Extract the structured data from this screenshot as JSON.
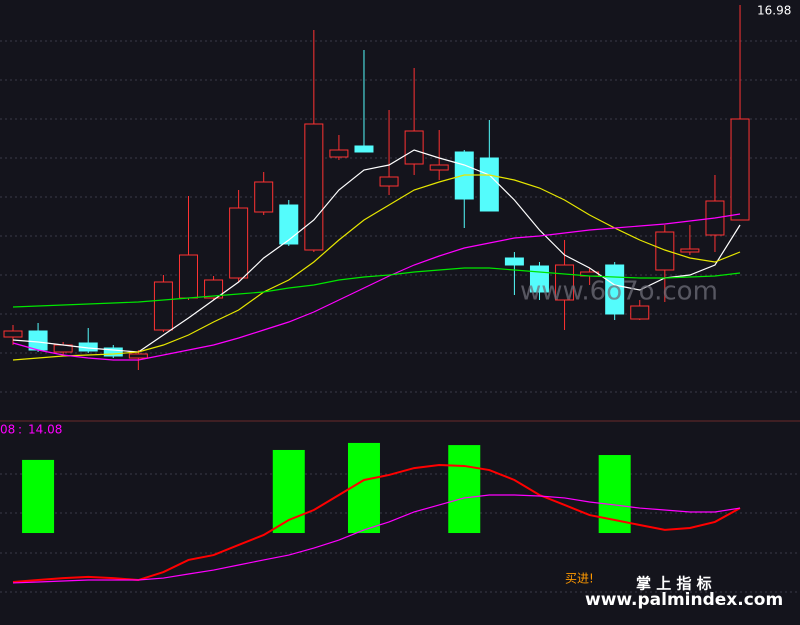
{
  "chart_data": [
    {
      "type": "candlestick",
      "open": [
        10.34,
        10.46,
        10.04,
        10.22,
        10.12,
        9.92,
        10.48,
        11.12,
        11.12,
        11.52,
        12.84,
        12.98,
        12.08,
        13.94,
        14.16,
        13.36,
        13.8,
        13.68,
        14.04,
        13.92,
        11.92,
        11.76,
        11.08,
        11.56,
        11.78,
        10.7,
        11.68,
        12.04,
        12.38,
        12.68
      ],
      "high": [
        10.58,
        10.62,
        10.24,
        10.52,
        10.18,
        10.08,
        11.58,
        13.16,
        11.56,
        13.28,
        13.64,
        13.08,
        16.48,
        14.38,
        16.08,
        14.88,
        15.72,
        14.48,
        14.08,
        14.68,
        12.04,
        11.84,
        12.28,
        11.72,
        11.84,
        11.08,
        12.58,
        12.58,
        13.58,
        16.98
      ],
      "low": [
        10.18,
        10.04,
        9.98,
        10.02,
        9.92,
        9.68,
        10.44,
        11.08,
        11.08,
        11.44,
        12.78,
        12.16,
        12.04,
        13.88,
        14.04,
        13.18,
        13.58,
        13.48,
        12.52,
        12.86,
        11.18,
        11.08,
        10.48,
        11.38,
        10.68,
        10.68,
        11.04,
        11.98,
        12.04,
        12.68
      ],
      "close": [
        10.46,
        10.08,
        10.18,
        10.06,
        9.96,
        10.0,
        11.44,
        11.98,
        11.48,
        12.92,
        13.44,
        12.2,
        14.6,
        14.08,
        14.04,
        13.54,
        14.46,
        13.78,
        13.1,
        12.86,
        11.78,
        11.24,
        11.78,
        11.64,
        10.8,
        10.96,
        12.44,
        12.1,
        13.06,
        14.7
      ],
      "up_color": "#ff3232",
      "down_color": "#54fcfc",
      "lines": [
        {
          "color": "#ffffff",
          "values": [
            10.28,
            10.24,
            10.18,
            10.12,
            10.08,
            10.04,
            10.38,
            10.72,
            11.08,
            11.44,
            11.92,
            12.28,
            12.68,
            13.28,
            13.68,
            13.78,
            14.08,
            13.92,
            13.78,
            13.58,
            13.08,
            12.48,
            11.98,
            11.72,
            11.38,
            11.28,
            11.52,
            11.58,
            11.78,
            12.58
          ]
        },
        {
          "color": "#e6e600",
          "values": [
            9.88,
            9.92,
            9.96,
            9.98,
            10.0,
            10.04,
            10.18,
            10.38,
            10.64,
            10.88,
            11.24,
            11.48,
            11.84,
            12.28,
            12.68,
            12.98,
            13.28,
            13.44,
            13.58,
            13.58,
            13.48,
            13.32,
            13.08,
            12.78,
            12.52,
            12.28,
            12.08,
            11.92,
            11.84,
            12.04
          ]
        },
        {
          "color": "#ff00ff",
          "values": [
            10.22,
            10.08,
            9.98,
            9.92,
            9.88,
            9.88,
            9.98,
            10.08,
            10.18,
            10.32,
            10.48,
            10.64,
            10.84,
            11.08,
            11.32,
            11.56,
            11.78,
            11.96,
            12.12,
            12.22,
            12.32,
            12.36,
            12.42,
            12.48,
            12.52,
            12.56,
            12.6,
            12.66,
            12.72,
            12.8
          ]
        },
        {
          "color": "#00e600",
          "values": [
            10.94,
            10.96,
            10.98,
            11.0,
            11.02,
            11.04,
            11.08,
            11.12,
            11.16,
            11.2,
            11.24,
            11.32,
            11.38,
            11.48,
            11.54,
            11.58,
            11.64,
            11.68,
            11.72,
            11.72,
            11.68,
            11.64,
            11.6,
            11.56,
            11.54,
            11.52,
            11.52,
            11.54,
            11.56,
            11.62
          ]
        }
      ],
      "ylim": [
        8.68,
        17.08
      ],
      "watermark": "www.6o7o.com"
    },
    {
      "type": "indicator",
      "label": "08",
      "label_value": 14.08,
      "label_color": "#ff00ff",
      "signal_top": [
        null,
        82.1,
        null,
        null,
        null,
        null,
        null,
        null,
        null,
        null,
        null,
        87.2,
        null,
        null,
        90.8,
        null,
        null,
        null,
        89.7,
        null,
        null,
        null,
        null,
        null,
        84.6,
        null,
        null,
        null,
        null,
        null
      ],
      "signal_bottom": [
        null,
        44.6,
        null,
        null,
        null,
        null,
        null,
        null,
        null,
        null,
        null,
        44.6,
        null,
        null,
        44.6,
        null,
        null,
        null,
        44.6,
        null,
        null,
        null,
        null,
        null,
        44.6,
        null,
        null,
        null,
        null,
        null
      ],
      "signal_color": "#00ff00",
      "lines": [
        {
          "color": "#ff0000",
          "values": [
            19.5,
            20.5,
            21.5,
            22.1,
            21.5,
            20.5,
            24.6,
            30.8,
            33.3,
            38.5,
            43.6,
            51.3,
            56.4,
            64.1,
            71.8,
            74.4,
            77.9,
            79.5,
            79.0,
            76.9,
            71.8,
            64.1,
            59.0,
            53.8,
            51.3,
            48.7,
            46.2,
            47.2,
            50.3,
            57.4
          ]
        },
        {
          "color": "#ff00ff",
          "values": [
            19.0,
            19.5,
            20.0,
            20.5,
            20.5,
            20.5,
            21.5,
            23.6,
            25.6,
            28.2,
            30.8,
            33.3,
            36.9,
            41.0,
            46.2,
            50.3,
            55.4,
            59.0,
            62.6,
            64.1,
            64.1,
            63.6,
            62.6,
            60.5,
            59.0,
            57.4,
            56.4,
            55.4,
            55.4,
            57.4
          ]
        }
      ],
      "ylim": [
        0,
        100
      ],
      "buy_text": "买进!"
    }
  ],
  "brand": {
    "name": "掌 上 指 标",
    "url": "www.palmindex.com"
  }
}
